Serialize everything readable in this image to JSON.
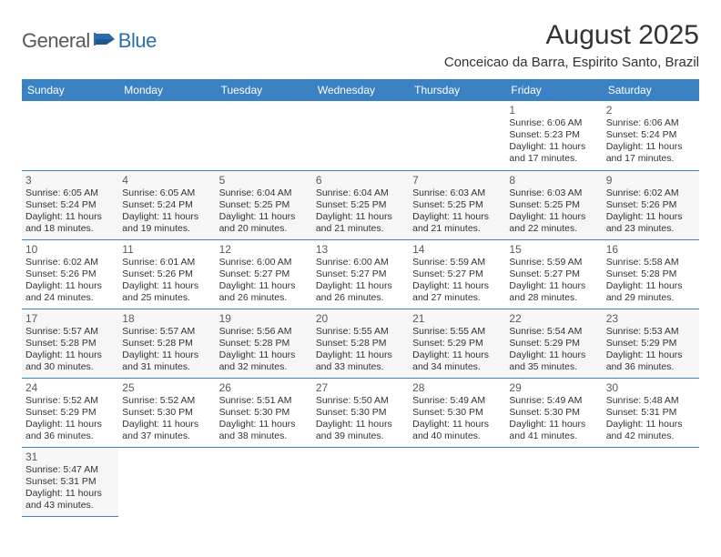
{
  "logo": {
    "text_general": "General",
    "text_blue": "Blue"
  },
  "title": "August 2025",
  "location": "Conceicao da Barra, Espirito Santo, Brazil",
  "colors": {
    "header_bg": "#3a82c4",
    "header_text": "#ffffff",
    "cell_border": "#3a82c4",
    "alt_row_bg": "#f6f6f6",
    "text": "#333333",
    "daynum": "#5a5a5a",
    "logo_gray": "#5a5a5a",
    "logo_blue": "#2b6fad"
  },
  "fonts": {
    "title_size_pt": 22,
    "location_size_pt": 11,
    "header_size_pt": 9,
    "daynum_size_pt": 9,
    "body_size_pt": 8
  },
  "day_headers": [
    "Sunday",
    "Monday",
    "Tuesday",
    "Wednesday",
    "Thursday",
    "Friday",
    "Saturday"
  ],
  "weeks": [
    [
      null,
      null,
      null,
      null,
      null,
      {
        "n": "1",
        "sr": "Sunrise: 6:06 AM",
        "ss": "Sunset: 5:23 PM",
        "dl": "Daylight: 11 hours and 17 minutes."
      },
      {
        "n": "2",
        "sr": "Sunrise: 6:06 AM",
        "ss": "Sunset: 5:24 PM",
        "dl": "Daylight: 11 hours and 17 minutes."
      }
    ],
    [
      {
        "n": "3",
        "sr": "Sunrise: 6:05 AM",
        "ss": "Sunset: 5:24 PM",
        "dl": "Daylight: 11 hours and 18 minutes."
      },
      {
        "n": "4",
        "sr": "Sunrise: 6:05 AM",
        "ss": "Sunset: 5:24 PM",
        "dl": "Daylight: 11 hours and 19 minutes."
      },
      {
        "n": "5",
        "sr": "Sunrise: 6:04 AM",
        "ss": "Sunset: 5:25 PM",
        "dl": "Daylight: 11 hours and 20 minutes."
      },
      {
        "n": "6",
        "sr": "Sunrise: 6:04 AM",
        "ss": "Sunset: 5:25 PM",
        "dl": "Daylight: 11 hours and 21 minutes."
      },
      {
        "n": "7",
        "sr": "Sunrise: 6:03 AM",
        "ss": "Sunset: 5:25 PM",
        "dl": "Daylight: 11 hours and 21 minutes."
      },
      {
        "n": "8",
        "sr": "Sunrise: 6:03 AM",
        "ss": "Sunset: 5:25 PM",
        "dl": "Daylight: 11 hours and 22 minutes."
      },
      {
        "n": "9",
        "sr": "Sunrise: 6:02 AM",
        "ss": "Sunset: 5:26 PM",
        "dl": "Daylight: 11 hours and 23 minutes."
      }
    ],
    [
      {
        "n": "10",
        "sr": "Sunrise: 6:02 AM",
        "ss": "Sunset: 5:26 PM",
        "dl": "Daylight: 11 hours and 24 minutes."
      },
      {
        "n": "11",
        "sr": "Sunrise: 6:01 AM",
        "ss": "Sunset: 5:26 PM",
        "dl": "Daylight: 11 hours and 25 minutes."
      },
      {
        "n": "12",
        "sr": "Sunrise: 6:00 AM",
        "ss": "Sunset: 5:27 PM",
        "dl": "Daylight: 11 hours and 26 minutes."
      },
      {
        "n": "13",
        "sr": "Sunrise: 6:00 AM",
        "ss": "Sunset: 5:27 PM",
        "dl": "Daylight: 11 hours and 26 minutes."
      },
      {
        "n": "14",
        "sr": "Sunrise: 5:59 AM",
        "ss": "Sunset: 5:27 PM",
        "dl": "Daylight: 11 hours and 27 minutes."
      },
      {
        "n": "15",
        "sr": "Sunrise: 5:59 AM",
        "ss": "Sunset: 5:27 PM",
        "dl": "Daylight: 11 hours and 28 minutes."
      },
      {
        "n": "16",
        "sr": "Sunrise: 5:58 AM",
        "ss": "Sunset: 5:28 PM",
        "dl": "Daylight: 11 hours and 29 minutes."
      }
    ],
    [
      {
        "n": "17",
        "sr": "Sunrise: 5:57 AM",
        "ss": "Sunset: 5:28 PM",
        "dl": "Daylight: 11 hours and 30 minutes."
      },
      {
        "n": "18",
        "sr": "Sunrise: 5:57 AM",
        "ss": "Sunset: 5:28 PM",
        "dl": "Daylight: 11 hours and 31 minutes."
      },
      {
        "n": "19",
        "sr": "Sunrise: 5:56 AM",
        "ss": "Sunset: 5:28 PM",
        "dl": "Daylight: 11 hours and 32 minutes."
      },
      {
        "n": "20",
        "sr": "Sunrise: 5:55 AM",
        "ss": "Sunset: 5:28 PM",
        "dl": "Daylight: 11 hours and 33 minutes."
      },
      {
        "n": "21",
        "sr": "Sunrise: 5:55 AM",
        "ss": "Sunset: 5:29 PM",
        "dl": "Daylight: 11 hours and 34 minutes."
      },
      {
        "n": "22",
        "sr": "Sunrise: 5:54 AM",
        "ss": "Sunset: 5:29 PM",
        "dl": "Daylight: 11 hours and 35 minutes."
      },
      {
        "n": "23",
        "sr": "Sunrise: 5:53 AM",
        "ss": "Sunset: 5:29 PM",
        "dl": "Daylight: 11 hours and 36 minutes."
      }
    ],
    [
      {
        "n": "24",
        "sr": "Sunrise: 5:52 AM",
        "ss": "Sunset: 5:29 PM",
        "dl": "Daylight: 11 hours and 36 minutes."
      },
      {
        "n": "25",
        "sr": "Sunrise: 5:52 AM",
        "ss": "Sunset: 5:30 PM",
        "dl": "Daylight: 11 hours and 37 minutes."
      },
      {
        "n": "26",
        "sr": "Sunrise: 5:51 AM",
        "ss": "Sunset: 5:30 PM",
        "dl": "Daylight: 11 hours and 38 minutes."
      },
      {
        "n": "27",
        "sr": "Sunrise: 5:50 AM",
        "ss": "Sunset: 5:30 PM",
        "dl": "Daylight: 11 hours and 39 minutes."
      },
      {
        "n": "28",
        "sr": "Sunrise: 5:49 AM",
        "ss": "Sunset: 5:30 PM",
        "dl": "Daylight: 11 hours and 40 minutes."
      },
      {
        "n": "29",
        "sr": "Sunrise: 5:49 AM",
        "ss": "Sunset: 5:30 PM",
        "dl": "Daylight: 11 hours and 41 minutes."
      },
      {
        "n": "30",
        "sr": "Sunrise: 5:48 AM",
        "ss": "Sunset: 5:31 PM",
        "dl": "Daylight: 11 hours and 42 minutes."
      }
    ],
    [
      {
        "n": "31",
        "sr": "Sunrise: 5:47 AM",
        "ss": "Sunset: 5:31 PM",
        "dl": "Daylight: 11 hours and 43 minutes."
      },
      null,
      null,
      null,
      null,
      null,
      null
    ]
  ]
}
